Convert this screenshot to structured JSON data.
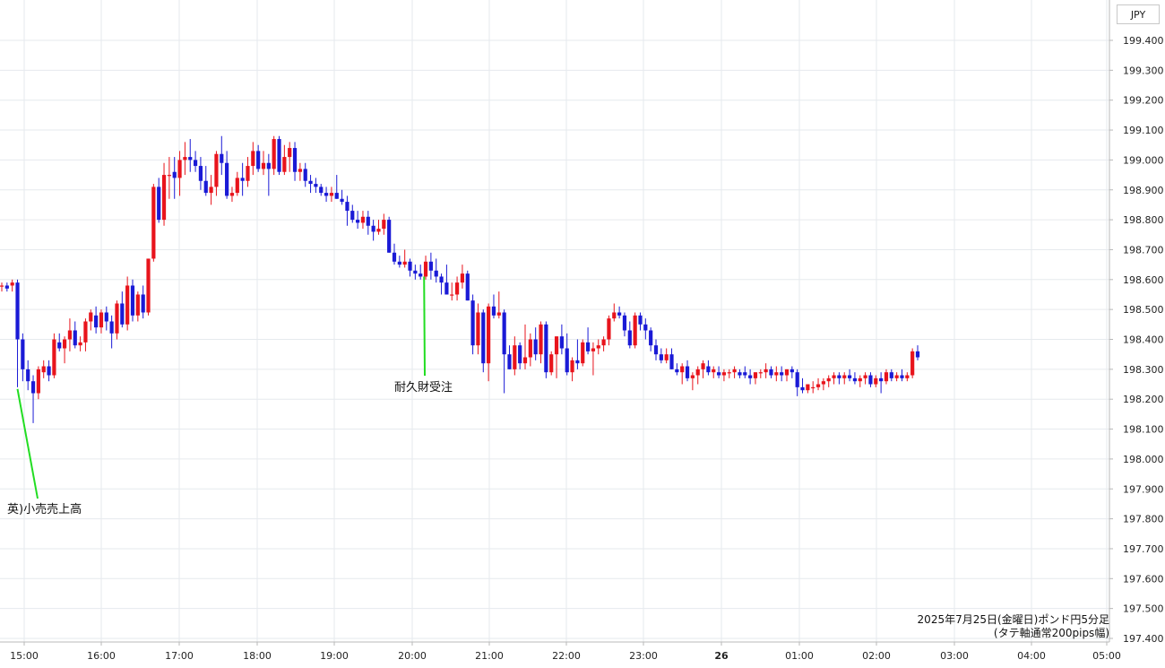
{
  "chart_data": {
    "type": "candlestick",
    "currency": "JPY",
    "caption_line1": "2025年7月25日(金曜日)ポンド円5分足",
    "caption_line2": "(タテ軸通常200pips幅)",
    "ylim": [
      197.4,
      199.45
    ],
    "y_ticks": [
      "199.400",
      "199.300",
      "199.200",
      "199.100",
      "199.000",
      "198.900",
      "198.800",
      "198.700",
      "198.600",
      "198.500",
      "198.400",
      "198.300",
      "198.200",
      "198.100",
      "198.000",
      "197.900",
      "197.800",
      "197.700",
      "197.600",
      "197.500",
      "197.400"
    ],
    "x_ticks": [
      {
        "label": "15:00",
        "bold": false
      },
      {
        "label": "16:00",
        "bold": false
      },
      {
        "label": "17:00",
        "bold": false
      },
      {
        "label": "18:00",
        "bold": false
      },
      {
        "label": "19:00",
        "bold": false
      },
      {
        "label": "20:00",
        "bold": false
      },
      {
        "label": "21:00",
        "bold": false
      },
      {
        "label": "22:00",
        "bold": false
      },
      {
        "label": "23:00",
        "bold": false
      },
      {
        "label": "26",
        "bold": true
      },
      {
        "label": "01:00",
        "bold": false
      },
      {
        "label": "02:00",
        "bold": false
      },
      {
        "label": "03:00",
        "bold": false
      },
      {
        "label": "04:00",
        "bold": false
      },
      {
        "label": "05:00",
        "bold": false
      }
    ],
    "annotations": [
      {
        "text": "英)小売売上高",
        "candle_index": 3
      },
      {
        "text": "耐久財受注",
        "candle_index": 80
      }
    ],
    "colors": {
      "up": "#e8141c",
      "down": "#1a1ad6",
      "grid": "#e6eaee",
      "arrow": "#22dd22"
    },
    "candles": [
      [
        198.58,
        198.59,
        198.56,
        198.58
      ],
      [
        198.58,
        198.59,
        198.56,
        198.57
      ],
      [
        198.58,
        198.6,
        198.56,
        198.59
      ],
      [
        198.59,
        198.6,
        198.24,
        198.4
      ],
      [
        198.4,
        198.42,
        198.26,
        198.3
      ],
      [
        198.3,
        198.33,
        198.23,
        198.26
      ],
      [
        198.26,
        198.28,
        198.12,
        198.22
      ],
      [
        198.22,
        198.31,
        198.2,
        198.3
      ],
      [
        198.29,
        198.33,
        198.27,
        198.31
      ],
      [
        198.31,
        198.33,
        198.26,
        198.28
      ],
      [
        198.28,
        198.42,
        198.27,
        198.4
      ],
      [
        198.39,
        198.42,
        198.36,
        198.37
      ],
      [
        198.37,
        198.41,
        198.32,
        198.4
      ],
      [
        198.4,
        198.47,
        198.36,
        198.43
      ],
      [
        198.43,
        198.46,
        198.37,
        198.38
      ],
      [
        198.38,
        198.41,
        198.36,
        198.39
      ],
      [
        198.39,
        198.47,
        198.36,
        198.46
      ],
      [
        198.46,
        198.5,
        198.43,
        198.49
      ],
      [
        198.48,
        198.51,
        198.42,
        198.44
      ],
      [
        198.44,
        198.5,
        198.42,
        198.49
      ],
      [
        198.49,
        198.51,
        198.43,
        198.46
      ],
      [
        198.46,
        198.48,
        198.37,
        198.42
      ],
      [
        198.42,
        198.53,
        198.4,
        198.52
      ],
      [
        198.52,
        198.56,
        198.44,
        198.45
      ],
      [
        198.45,
        198.61,
        198.43,
        198.58
      ],
      [
        198.58,
        198.6,
        198.46,
        198.48
      ],
      [
        198.48,
        198.56,
        198.46,
        198.55
      ],
      [
        198.55,
        198.58,
        198.47,
        198.49
      ],
      [
        198.49,
        198.67,
        198.48,
        198.67
      ],
      [
        198.67,
        198.92,
        198.66,
        198.91
      ],
      [
        198.91,
        198.94,
        198.79,
        198.8
      ],
      [
        198.8,
        198.99,
        198.78,
        198.95
      ],
      [
        198.95,
        199.01,
        198.87,
        198.95
      ],
      [
        198.96,
        199.01,
        198.87,
        198.94
      ],
      [
        198.94,
        199.03,
        198.88,
        199.0
      ],
      [
        199.0,
        199.06,
        198.95,
        199.01
      ],
      [
        199.01,
        199.07,
        198.96,
        199.0
      ],
      [
        199.0,
        199.03,
        198.96,
        198.98
      ],
      [
        198.98,
        199.01,
        198.9,
        198.93
      ],
      [
        198.93,
        198.98,
        198.88,
        198.89
      ],
      [
        198.89,
        198.95,
        198.85,
        198.91
      ],
      [
        198.91,
        199.03,
        198.88,
        199.02
      ],
      [
        199.02,
        199.08,
        198.95,
        198.99
      ],
      [
        198.99,
        199.03,
        198.87,
        198.88
      ],
      [
        198.88,
        198.91,
        198.86,
        198.89
      ],
      [
        198.89,
        198.96,
        198.88,
        198.94
      ],
      [
        198.94,
        198.99,
        198.88,
        198.93
      ],
      [
        198.93,
        199.01,
        198.91,
        198.98
      ],
      [
        198.98,
        199.06,
        198.95,
        199.03
      ],
      [
        199.03,
        199.05,
        198.96,
        198.97
      ],
      [
        198.97,
        199.03,
        198.95,
        198.99
      ],
      [
        198.99,
        199.02,
        198.88,
        198.97
      ],
      [
        198.97,
        199.08,
        198.95,
        199.07
      ],
      [
        199.07,
        199.08,
        198.95,
        198.96
      ],
      [
        198.96,
        199.05,
        198.95,
        199.01
      ],
      [
        199.01,
        199.06,
        198.96,
        199.04
      ],
      [
        199.04,
        199.06,
        198.93,
        198.96
      ],
      [
        198.96,
        198.99,
        198.93,
        198.97
      ],
      [
        198.97,
        198.99,
        198.91,
        198.93
      ],
      [
        198.93,
        198.95,
        198.89,
        198.92
      ],
      [
        198.92,
        198.94,
        198.89,
        198.91
      ],
      [
        198.91,
        198.92,
        198.88,
        198.89
      ],
      [
        198.89,
        198.91,
        198.86,
        198.88
      ],
      [
        198.88,
        198.91,
        198.86,
        198.89
      ],
      [
        198.89,
        198.95,
        198.87,
        198.87
      ],
      [
        198.87,
        198.9,
        198.85,
        198.86
      ],
      [
        198.86,
        198.88,
        198.78,
        198.83
      ],
      [
        198.83,
        198.85,
        198.79,
        198.8
      ],
      [
        198.8,
        198.83,
        198.77,
        198.79
      ],
      [
        198.79,
        198.83,
        198.77,
        198.81
      ],
      [
        198.81,
        198.83,
        198.75,
        198.78
      ],
      [
        198.78,
        198.8,
        198.73,
        198.76
      ],
      [
        198.76,
        198.8,
        198.75,
        198.77
      ],
      [
        198.77,
        198.82,
        198.75,
        198.8
      ],
      [
        198.8,
        198.81,
        198.69,
        198.69
      ],
      [
        198.69,
        198.72,
        198.65,
        198.66
      ],
      [
        198.66,
        198.68,
        198.64,
        198.65
      ],
      [
        198.65,
        198.7,
        198.64,
        198.66
      ],
      [
        198.66,
        198.67,
        198.61,
        198.63
      ],
      [
        198.63,
        198.65,
        198.6,
        198.62
      ],
      [
        198.62,
        198.65,
        198.6,
        198.61
      ],
      [
        198.61,
        198.68,
        198.6,
        198.66
      ],
      [
        198.66,
        198.69,
        198.6,
        198.63
      ],
      [
        198.63,
        198.67,
        198.59,
        198.61
      ],
      [
        198.61,
        198.62,
        198.55,
        198.59
      ],
      [
        198.59,
        198.65,
        198.55,
        198.55
      ],
      [
        198.55,
        198.59,
        198.53,
        198.55
      ],
      [
        198.55,
        198.61,
        198.53,
        198.59
      ],
      [
        198.59,
        198.65,
        198.57,
        198.62
      ],
      [
        198.62,
        198.63,
        198.53,
        198.53
      ],
      [
        198.53,
        198.55,
        198.35,
        198.38
      ],
      [
        198.38,
        198.52,
        198.35,
        198.49
      ],
      [
        198.49,
        198.5,
        198.29,
        198.32
      ],
      [
        198.32,
        198.52,
        198.26,
        198.51
      ],
      [
        198.51,
        198.55,
        198.47,
        198.48
      ],
      [
        198.48,
        198.56,
        198.47,
        198.49
      ],
      [
        198.49,
        198.5,
        198.22,
        198.35
      ],
      [
        198.35,
        198.38,
        198.3,
        198.3
      ],
      [
        198.3,
        198.41,
        198.28,
        198.38
      ],
      [
        198.38,
        198.39,
        198.3,
        198.32
      ],
      [
        198.32,
        198.45,
        198.3,
        198.34
      ],
      [
        198.34,
        198.42,
        198.31,
        198.4
      ],
      [
        198.4,
        198.44,
        198.33,
        198.35
      ],
      [
        198.35,
        198.46,
        198.32,
        198.45
      ],
      [
        198.45,
        198.46,
        198.27,
        198.29
      ],
      [
        198.29,
        198.36,
        198.28,
        198.35
      ],
      [
        198.35,
        198.41,
        198.27,
        198.41
      ],
      [
        198.41,
        198.45,
        198.35,
        198.37
      ],
      [
        198.37,
        198.42,
        198.28,
        198.29
      ],
      [
        198.29,
        198.34,
        198.26,
        198.33
      ],
      [
        198.33,
        198.4,
        198.3,
        198.32
      ],
      [
        198.32,
        198.4,
        198.31,
        198.39
      ],
      [
        198.39,
        198.44,
        198.35,
        198.36
      ],
      [
        198.36,
        198.39,
        198.28,
        198.37
      ],
      [
        198.37,
        198.4,
        198.35,
        198.38
      ],
      [
        198.38,
        198.41,
        198.36,
        198.4
      ],
      [
        198.4,
        198.48,
        198.38,
        198.47
      ],
      [
        198.47,
        198.52,
        198.46,
        198.49
      ],
      [
        198.49,
        198.51,
        198.47,
        198.48
      ],
      [
        198.48,
        198.49,
        198.41,
        198.43
      ],
      [
        198.43,
        198.46,
        198.37,
        198.38
      ],
      [
        198.38,
        198.49,
        198.37,
        198.48
      ],
      [
        198.48,
        198.49,
        198.43,
        198.45
      ],
      [
        198.45,
        198.47,
        198.4,
        198.43
      ],
      [
        198.43,
        198.44,
        198.36,
        198.38
      ],
      [
        198.38,
        198.4,
        198.33,
        198.35
      ],
      [
        198.35,
        198.37,
        198.32,
        198.33
      ],
      [
        198.33,
        198.37,
        198.32,
        198.35
      ],
      [
        198.35,
        198.37,
        198.3,
        198.3
      ],
      [
        198.3,
        198.32,
        198.28,
        198.29
      ],
      [
        198.29,
        198.32,
        198.25,
        198.31
      ],
      [
        198.31,
        198.33,
        198.26,
        198.27
      ],
      [
        198.27,
        198.29,
        198.23,
        198.28
      ],
      [
        198.28,
        198.31,
        198.25,
        198.3
      ],
      [
        198.3,
        198.33,
        198.27,
        198.32
      ],
      [
        198.31,
        198.33,
        198.28,
        198.29
      ],
      [
        198.29,
        198.31,
        198.27,
        198.3
      ],
      [
        198.29,
        198.31,
        198.27,
        198.28
      ],
      [
        198.28,
        198.3,
        198.26,
        198.29
      ],
      [
        198.29,
        198.3,
        198.27,
        198.29
      ],
      [
        198.29,
        198.31,
        198.27,
        198.3
      ],
      [
        198.29,
        198.3,
        198.27,
        198.28
      ],
      [
        198.29,
        198.31,
        198.27,
        198.28
      ],
      [
        198.28,
        198.3,
        198.25,
        198.27
      ],
      [
        198.27,
        198.29,
        198.25,
        198.29
      ],
      [
        198.29,
        198.3,
        198.27,
        198.29
      ],
      [
        198.29,
        198.32,
        198.27,
        198.3
      ],
      [
        198.3,
        198.31,
        198.27,
        198.28
      ],
      [
        198.28,
        198.31,
        198.26,
        198.29
      ],
      [
        198.29,
        198.31,
        198.26,
        198.28
      ],
      [
        198.28,
        198.3,
        198.26,
        198.3
      ],
      [
        198.3,
        198.31,
        198.27,
        198.29
      ],
      [
        198.29,
        198.3,
        198.21,
        198.24
      ],
      [
        198.24,
        198.27,
        198.22,
        198.23
      ],
      [
        198.23,
        198.25,
        198.22,
        198.25
      ],
      [
        198.24,
        198.26,
        198.22,
        198.24
      ],
      [
        198.24,
        198.27,
        198.23,
        198.25
      ],
      [
        198.25,
        198.27,
        198.23,
        198.26
      ],
      [
        198.26,
        198.28,
        198.24,
        198.27
      ],
      [
        198.27,
        198.29,
        198.25,
        198.28
      ],
      [
        198.28,
        198.29,
        198.25,
        198.27
      ],
      [
        198.27,
        198.29,
        198.25,
        198.28
      ],
      [
        198.28,
        198.3,
        198.26,
        198.27
      ],
      [
        198.27,
        198.29,
        198.25,
        198.26
      ],
      [
        198.26,
        198.28,
        198.24,
        198.27
      ],
      [
        198.27,
        198.29,
        198.25,
        198.28
      ],
      [
        198.28,
        198.29,
        198.24,
        198.25
      ],
      [
        198.25,
        198.28,
        198.24,
        198.27
      ],
      [
        198.27,
        198.29,
        198.22,
        198.26
      ],
      [
        198.26,
        198.3,
        198.25,
        198.29
      ],
      [
        198.29,
        198.3,
        198.26,
        198.27
      ],
      [
        198.27,
        198.29,
        198.26,
        198.28
      ],
      [
        198.28,
        198.3,
        198.26,
        198.27
      ],
      [
        198.27,
        198.29,
        198.26,
        198.28
      ],
      [
        198.28,
        198.37,
        198.27,
        198.36
      ],
      [
        198.36,
        198.38,
        198.33,
        198.34
      ]
    ]
  }
}
